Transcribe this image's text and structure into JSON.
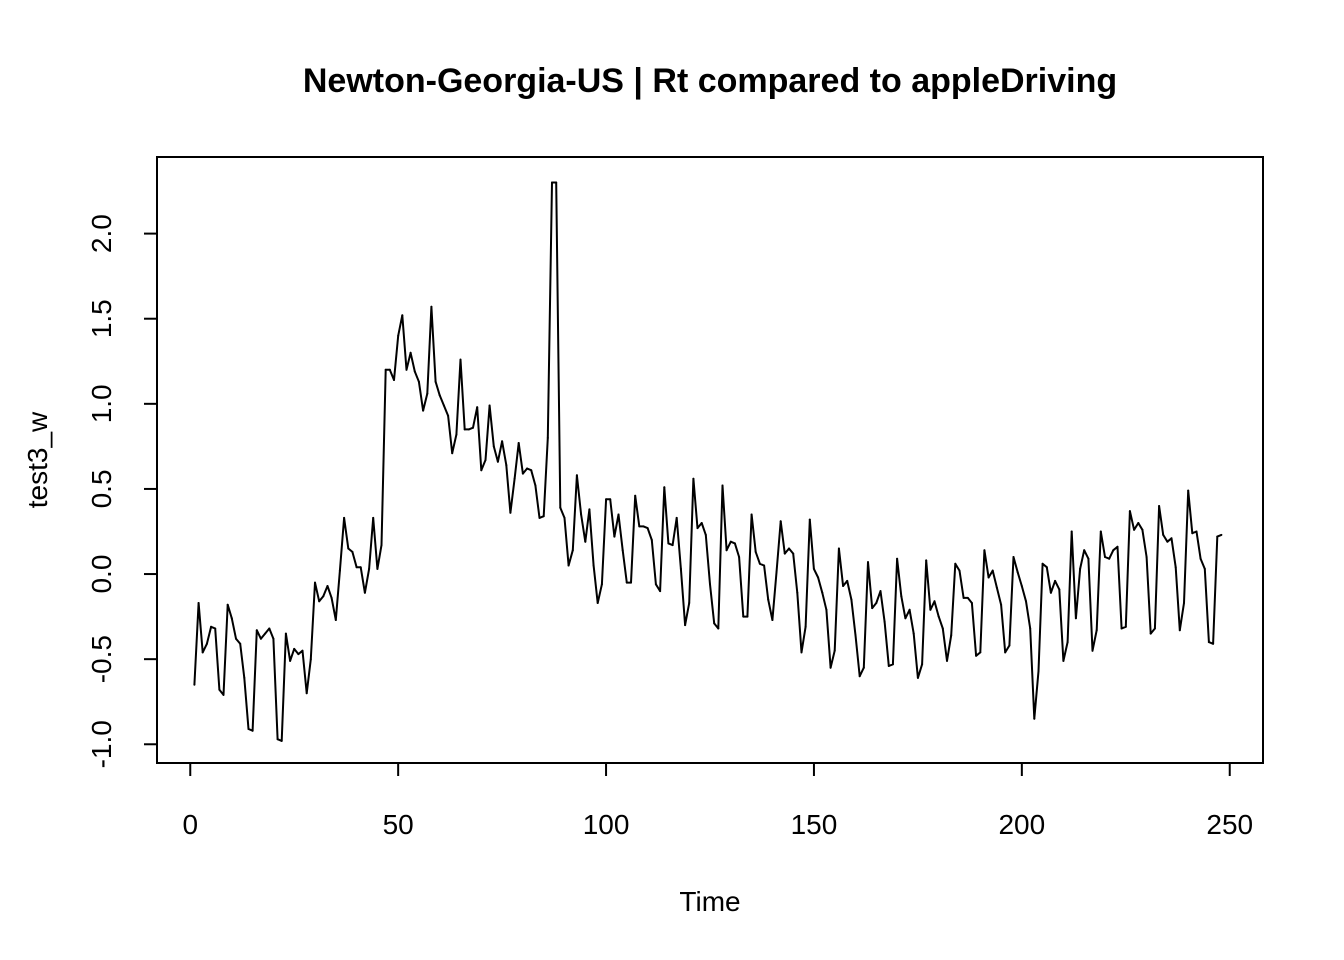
{
  "chart_data": {
    "type": "line",
    "title": "Newton-Georgia-US | Rt compared to appleDriving",
    "xlabel": "Time",
    "ylabel": "test3_w",
    "xlim": [
      -8,
      258
    ],
    "ylim": [
      -1.11,
      2.45
    ],
    "xticks": [
      0,
      50,
      100,
      150,
      200,
      250
    ],
    "yticks": [
      -1.0,
      -0.5,
      0.0,
      0.5,
      1.0,
      1.5,
      2.0
    ],
    "xtick_labels": [
      "0",
      "50",
      "100",
      "150",
      "200",
      "250"
    ],
    "ytick_labels": [
      "-1.0",
      "-0.5",
      "0.0",
      "0.5",
      "1.0",
      "1.5",
      "2.0"
    ],
    "grid": false,
    "line_color": "#000000",
    "series": [
      {
        "x_start": 1,
        "values": [
          -0.65,
          -0.17,
          -0.46,
          -0.41,
          -0.31,
          -0.32,
          -0.68,
          -0.71,
          -0.18,
          -0.26,
          -0.38,
          -0.41,
          -0.61,
          -0.91,
          -0.92,
          -0.33,
          -0.38,
          -0.35,
          -0.32,
          -0.38,
          -0.97,
          -0.98,
          -0.35,
          -0.51,
          -0.44,
          -0.47,
          -0.45,
          -0.7,
          -0.5,
          -0.05,
          -0.16,
          -0.13,
          -0.07,
          -0.14,
          -0.27,
          0.02,
          0.33,
          0.15,
          0.13,
          0.04,
          0.04,
          -0.11,
          0.03,
          0.33,
          0.03,
          0.17,
          1.2,
          1.2,
          1.14,
          1.4,
          1.52,
          1.2,
          1.3,
          1.19,
          1.13,
          0.96,
          1.06,
          1.57,
          1.13,
          1.05,
          0.99,
          0.93,
          0.71,
          0.82,
          1.26,
          0.85,
          0.85,
          0.86,
          0.98,
          0.61,
          0.67,
          0.99,
          0.75,
          0.66,
          0.78,
          0.64,
          0.36,
          0.56,
          0.77,
          0.59,
          0.62,
          0.61,
          0.52,
          0.33,
          0.34,
          0.8,
          2.3,
          2.3,
          0.39,
          0.33,
          0.05,
          0.14,
          0.58,
          0.35,
          0.19,
          0.38,
          0.05,
          -0.17,
          -0.06,
          0.44,
          0.44,
          0.22,
          0.35,
          0.14,
          -0.05,
          -0.05,
          0.46,
          0.28,
          0.28,
          0.27,
          0.2,
          -0.06,
          -0.1,
          0.51,
          0.18,
          0.17,
          0.33,
          0.03,
          -0.3,
          -0.17,
          0.56,
          0.27,
          0.3,
          0.23,
          -0.06,
          -0.29,
          -0.32,
          0.52,
          0.14,
          0.19,
          0.18,
          0.1,
          -0.25,
          -0.25,
          0.35,
          0.13,
          0.06,
          0.05,
          -0.15,
          -0.27,
          0.01,
          0.31,
          0.12,
          0.15,
          0.12,
          -0.11,
          -0.46,
          -0.31,
          0.32,
          0.03,
          -0.02,
          -0.11,
          -0.21,
          -0.55,
          -0.45,
          0.15,
          -0.07,
          -0.04,
          -0.15,
          -0.36,
          -0.6,
          -0.55,
          0.07,
          -0.2,
          -0.17,
          -0.1,
          -0.28,
          -0.54,
          -0.53,
          0.09,
          -0.13,
          -0.26,
          -0.21,
          -0.35,
          -0.61,
          -0.53,
          0.08,
          -0.21,
          -0.16,
          -0.25,
          -0.32,
          -0.51,
          -0.36,
          0.06,
          0.02,
          -0.14,
          -0.14,
          -0.17,
          -0.48,
          -0.46,
          0.14,
          -0.02,
          0.02,
          -0.08,
          -0.18,
          -0.46,
          -0.42,
          0.1,
          0.01,
          -0.07,
          -0.16,
          -0.32,
          -0.85,
          -0.57,
          0.06,
          0.04,
          -0.11,
          -0.04,
          -0.09,
          -0.51,
          -0.4,
          0.25,
          -0.26,
          0.03,
          0.14,
          0.09,
          -0.45,
          -0.33,
          0.25,
          0.1,
          0.09,
          0.14,
          0.16,
          -0.32,
          -0.31,
          0.37,
          0.26,
          0.3,
          0.26,
          0.1,
          -0.35,
          -0.32,
          0.4,
          0.23,
          0.19,
          0.21,
          0.04,
          -0.33,
          -0.17,
          0.49,
          0.24,
          0.25,
          0.09,
          0.03,
          -0.4,
          -0.41,
          0.22,
          0.23
        ]
      }
    ]
  }
}
